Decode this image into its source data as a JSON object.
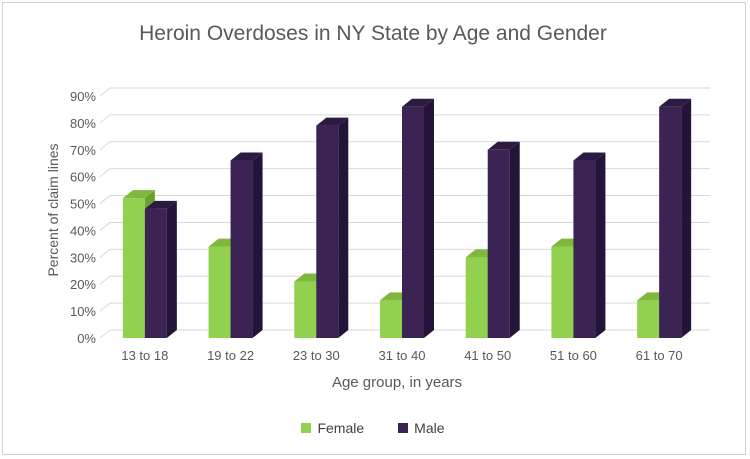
{
  "chart_data": {
    "type": "bar",
    "title": "Heroin Overdoses in NY State by Age and Gender",
    "xlabel": "Age group, in years",
    "ylabel": "Percent of claim lines",
    "categories": [
      "13 to 18",
      "19 to 22",
      "23 to 30",
      "31 to 40",
      "41 to 50",
      "51 to 60",
      "61 to 70"
    ],
    "series": [
      {
        "name": "Female",
        "color": "#92d050",
        "values": [
          52,
          34,
          21,
          14,
          30,
          34,
          14
        ]
      },
      {
        "name": "Male",
        "color": "#3b2454",
        "values": [
          48,
          66,
          79,
          86,
          70,
          66,
          86
        ]
      }
    ],
    "ylim": [
      0,
      90
    ],
    "yticks": [
      "0%",
      "10%",
      "20%",
      "30%",
      "40%",
      "50%",
      "60%",
      "70%",
      "80%",
      "90%"
    ],
    "grid": true,
    "legend_position": "bottom"
  }
}
